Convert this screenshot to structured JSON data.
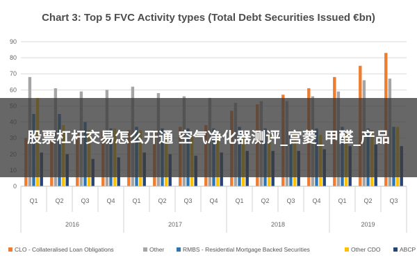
{
  "chart_data": {
    "type": "bar",
    "title": "Chart 3: Top 5 FVC Activity types (Total Debt Securities Issued €bn)",
    "xlabel": "",
    "ylabel": "",
    "ylim": [
      0,
      90
    ],
    "yticks": [
      0,
      10,
      20,
      30,
      40,
      50,
      60,
      70,
      80,
      90
    ],
    "grid": true,
    "legend_position": "bottom",
    "categories": [
      "Q1",
      "Q2",
      "Q3",
      "Q4",
      "Q1",
      "Q2",
      "Q3",
      "Q4",
      "Q1",
      "Q2",
      "Q3",
      "Q4",
      "Q1",
      "Q2",
      "Q3"
    ],
    "year_groups": [
      {
        "label": "2016",
        "count": 4
      },
      {
        "label": "2017",
        "count": 4
      },
      {
        "label": "2018",
        "count": 4
      },
      {
        "label": "2019",
        "count": 3
      }
    ],
    "series": [
      {
        "name": "CLO - Collateralised Loan Obligations",
        "color": "#ed7d31",
        "values": [
          30,
          32,
          33,
          34,
          35,
          35,
          37,
          38,
          47,
          51,
          57,
          61,
          68,
          75,
          83
        ]
      },
      {
        "name": "Other",
        "color": "#a5a5a5",
        "values": [
          68,
          61,
          59,
          60,
          62,
          58,
          56,
          55,
          52,
          53,
          53,
          56,
          59,
          66,
          67
        ]
      },
      {
        "name": "RMBS - Residential Mortgage Backed Securities",
        "color": "#2e75b6",
        "values": [
          45,
          45,
          40,
          36,
          37,
          36,
          36,
          36,
          37,
          36,
          34,
          36,
          37,
          36,
          37
        ]
      },
      {
        "name": "Other CDO",
        "color": "#ffc000",
        "values": [
          55,
          38,
          35,
          36,
          35,
          35,
          31,
          32,
          31,
          32,
          33,
          32,
          34,
          35,
          37
        ]
      },
      {
        "name": "ABCP",
        "color": "#264478",
        "values": [
          21,
          20,
          17,
          18,
          21,
          20,
          19,
          21,
          22,
          22,
          22,
          23,
          25,
          26,
          25
        ]
      }
    ]
  },
  "overlay": {
    "text": "股票杠杆交易怎么开通 空气净化器测评_宫菱_甲醛_产品"
  }
}
